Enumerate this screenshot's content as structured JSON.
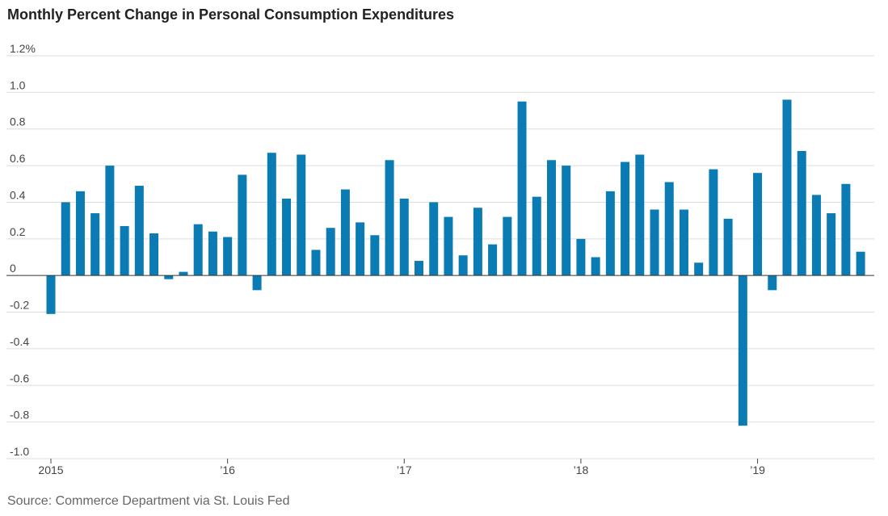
{
  "chart_data": {
    "type": "bar",
    "title": "Monthly Percent Change in Personal Consumption Expenditures",
    "source": "Source: Commerce Department via St. Louis Fed",
    "ylim": [
      -1.0,
      1.2
    ],
    "y_ticks": [
      {
        "value": 1.2,
        "label": "1.2%"
      },
      {
        "value": 1.0,
        "label": "1.0"
      },
      {
        "value": 0.8,
        "label": "0.8"
      },
      {
        "value": 0.6,
        "label": "0.6"
      },
      {
        "value": 0.4,
        "label": "0.4"
      },
      {
        "value": 0.2,
        "label": "0.2"
      },
      {
        "value": 0,
        "label": "0"
      },
      {
        "value": -0.2,
        "label": "-0.2"
      },
      {
        "value": -0.4,
        "label": "-0.4"
      },
      {
        "value": -0.6,
        "label": "-0.6"
      },
      {
        "value": -0.8,
        "label": "-0.8"
      },
      {
        "value": -1.0,
        "label": "-1.0"
      }
    ],
    "x_ticks": [
      {
        "month_index": 0,
        "label": "2015"
      },
      {
        "month_index": 12,
        "label": "’16"
      },
      {
        "month_index": 24,
        "label": "’17"
      },
      {
        "month_index": 36,
        "label": "’18"
      },
      {
        "month_index": 48,
        "label": "’19"
      }
    ],
    "grid": true,
    "bar_color": "#0a7bb3",
    "values": [
      -0.21,
      0.4,
      0.46,
      0.34,
      0.6,
      0.27,
      0.49,
      0.23,
      -0.02,
      0.02,
      0.28,
      0.24,
      0.21,
      0.55,
      -0.08,
      0.67,
      0.42,
      0.66,
      0.14,
      0.26,
      0.47,
      0.29,
      0.22,
      0.63,
      0.42,
      0.08,
      0.4,
      0.32,
      0.11,
      0.37,
      0.17,
      0.32,
      0.95,
      0.43,
      0.63,
      0.6,
      0.2,
      0.1,
      0.46,
      0.62,
      0.66,
      0.36,
      0.51,
      0.36,
      0.07,
      0.58,
      0.31,
      -0.82,
      0.56,
      -0.08,
      0.96,
      0.68,
      0.44,
      0.34,
      0.5,
      0.13
    ]
  }
}
